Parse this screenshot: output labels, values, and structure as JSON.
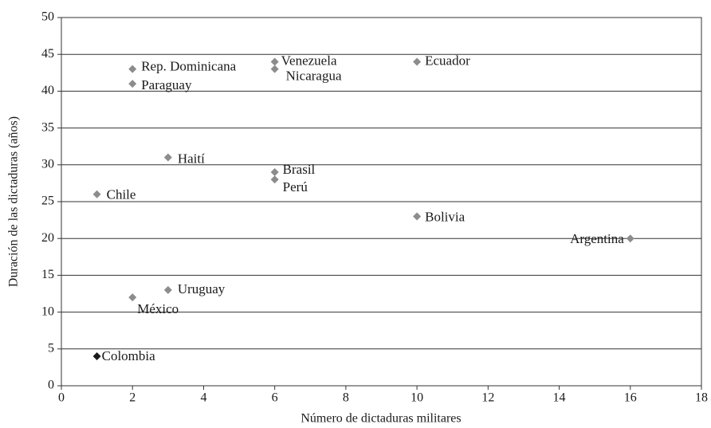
{
  "chart_data": {
    "type": "scatter",
    "xlabel": "Número de dictaduras militares",
    "ylabel": "Duración de las dictaduras (años)",
    "labels": [
      "Rep. Dominicana",
      "Paraguay",
      "Venezuela",
      "Nicaragua",
      "Ecuador",
      "Haití",
      "Brasil",
      "Perú",
      "Chile",
      "Bolivia",
      "Argentina",
      "Uruguay",
      "México",
      "Colombia"
    ],
    "x": [
      2,
      2,
      6,
      6,
      10,
      3,
      6,
      6,
      1,
      10,
      16,
      3,
      2,
      1
    ],
    "values": [
      43,
      41,
      44,
      43,
      44,
      31,
      29,
      28,
      26,
      23,
      20,
      13,
      12,
      4
    ],
    "colors": [
      "#8c8c8c",
      "#8c8c8c",
      "#8c8c8c",
      "#8c8c8c",
      "#8c8c8c",
      "#8c8c8c",
      "#8c8c8c",
      "#8c8c8c",
      "#8c8c8c",
      "#8c8c8c",
      "#8c8c8c",
      "#8c8c8c",
      "#8c8c8c",
      "#1a1a1a"
    ],
    "xlim": [
      0,
      18
    ],
    "xticks": [
      0,
      2,
      4,
      6,
      8,
      10,
      12,
      14,
      16,
      18
    ],
    "ylim": [
      0,
      50
    ],
    "yticks": [
      0,
      5,
      10,
      15,
      20,
      25,
      30,
      35,
      40,
      45,
      50
    ],
    "grid": true
  }
}
